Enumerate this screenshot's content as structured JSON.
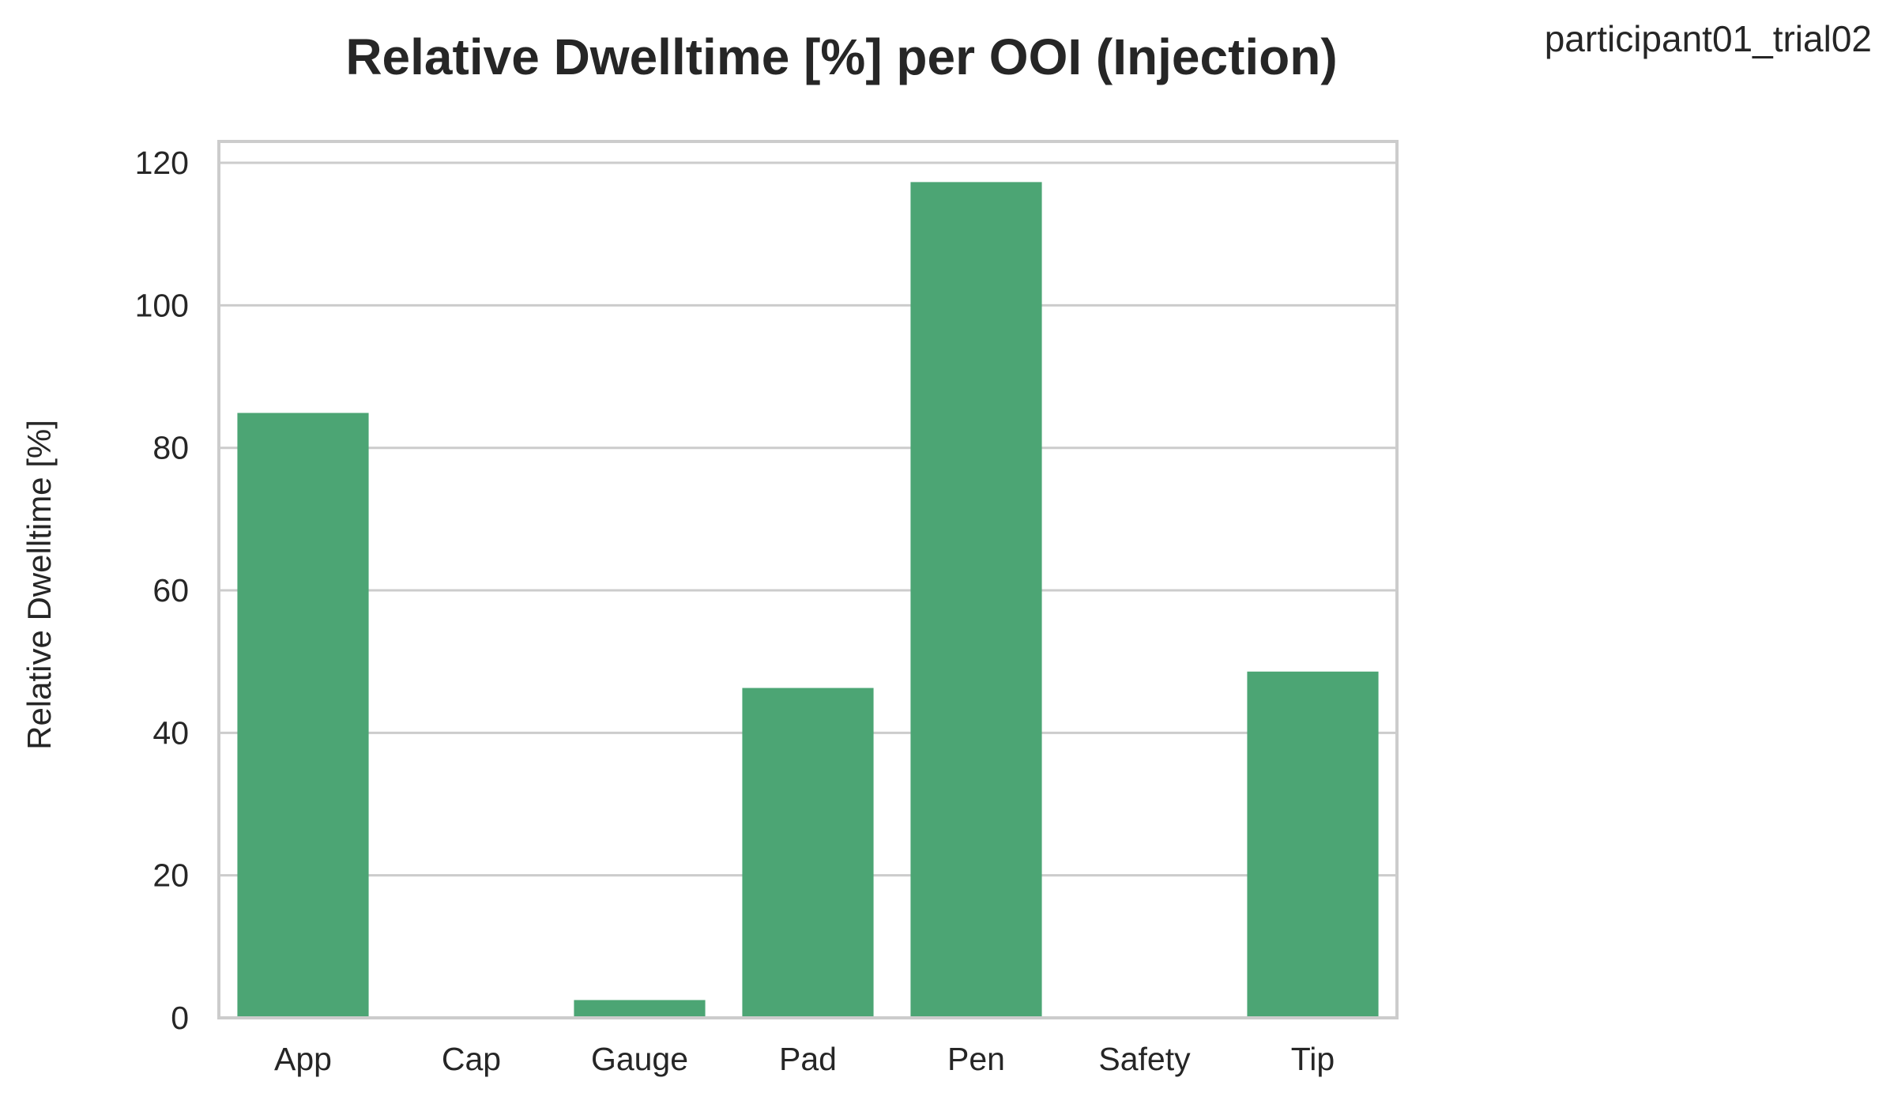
{
  "chart_data": {
    "type": "bar",
    "title": "Relative Dwelltime [%] per OOI (Injection)",
    "annotation": "participant01_trial02",
    "xlabel": "",
    "ylabel": "Relative Dwelltime [%]",
    "categories": [
      "App",
      "Cap",
      "Gauge",
      "Pad",
      "Pen",
      "Safety",
      "Tip"
    ],
    "values": [
      84.9,
      0,
      2.5,
      46.3,
      117.3,
      0,
      48.6
    ],
    "ylim": [
      0,
      123
    ],
    "yticks": [
      0,
      20,
      40,
      60,
      80,
      100,
      120
    ],
    "grid": true,
    "bar_color": "#4ca574"
  }
}
